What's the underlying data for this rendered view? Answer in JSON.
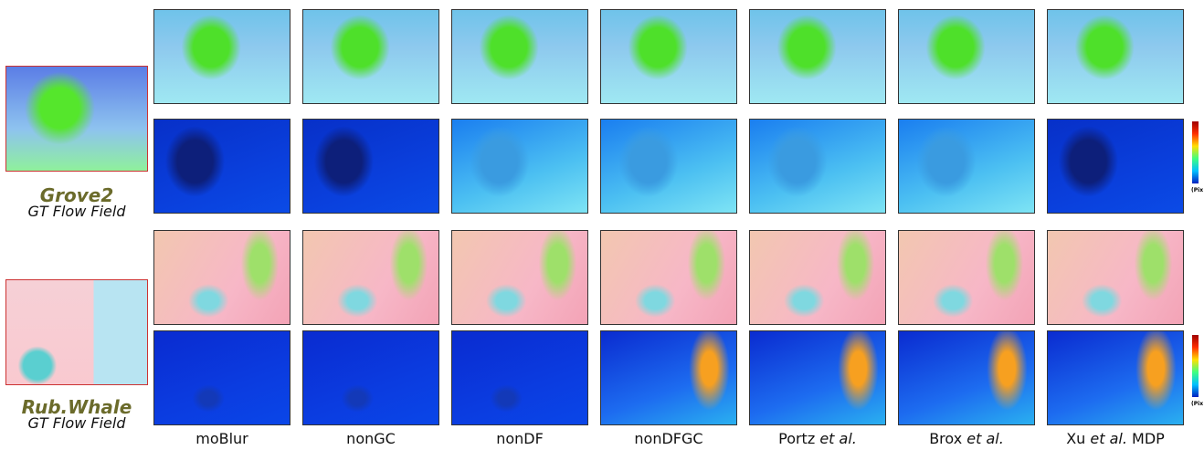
{
  "left_panels": [
    {
      "name": "Grove2",
      "caption": "GT Flow Field"
    },
    {
      "name": "Rub.Whale",
      "caption": "GT Flow Field"
    }
  ],
  "columns": [
    {
      "label": "moBlur"
    },
    {
      "label": "nonGC"
    },
    {
      "label": "nonDF"
    },
    {
      "label": "nonDFGC"
    },
    {
      "label": "Portz",
      "label_italic": "et al."
    },
    {
      "label": "Brox",
      "label_italic": "et al."
    },
    {
      "label": "Xu",
      "label_italic": "et al.",
      "label_suffix": "MDP"
    }
  ],
  "colorbar_labels": [
    "(Pix",
    "(Pix"
  ]
}
